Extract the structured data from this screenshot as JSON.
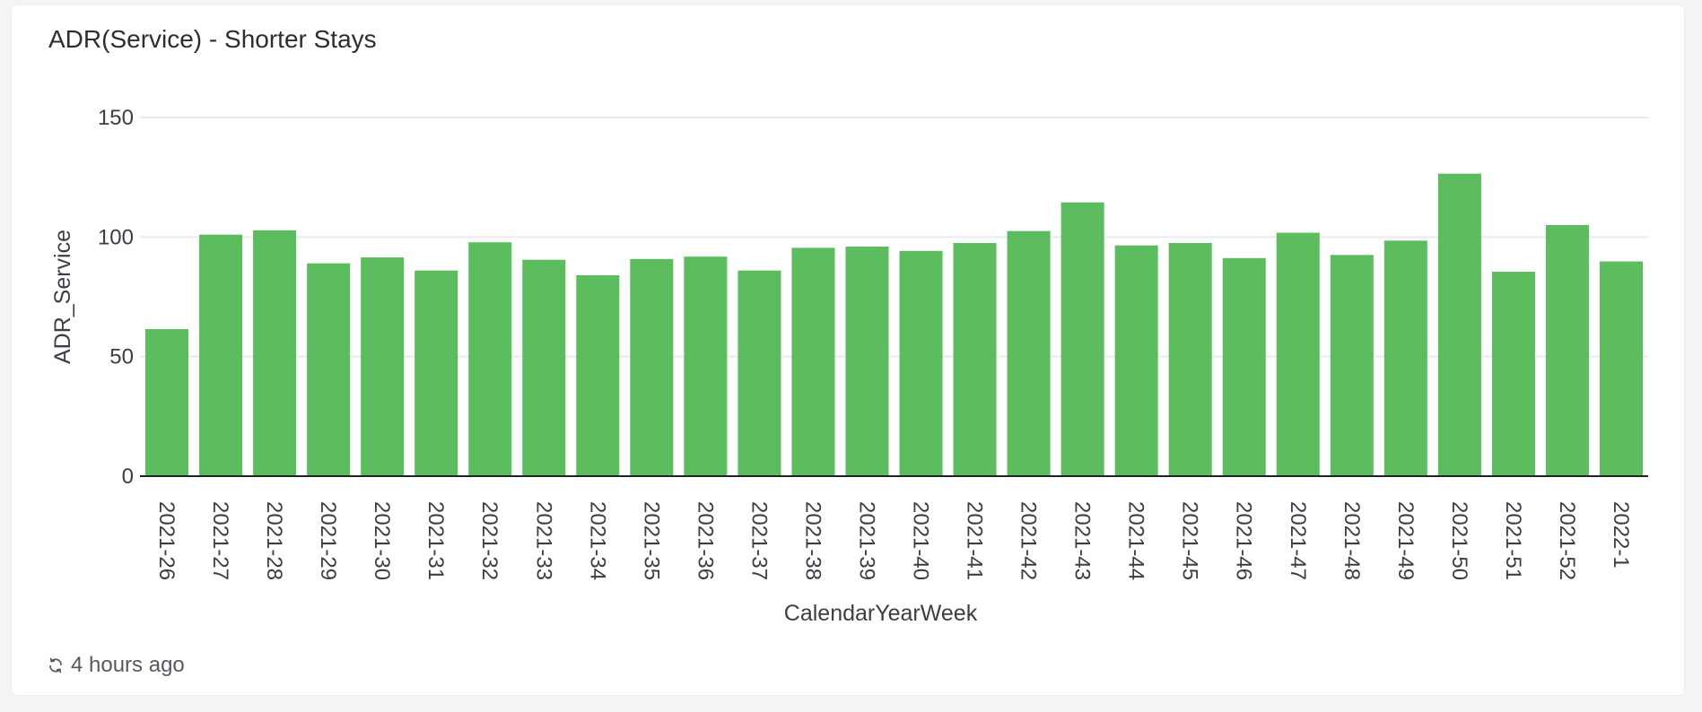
{
  "card": {
    "title": "ADR(Service) - Shorter Stays",
    "footer_text": "4 hours ago",
    "footer_icon": "refresh-icon"
  },
  "colors": {
    "bar": "#5cbd5e",
    "grid": "#e9ebee",
    "axis": "#1f2328"
  },
  "chart_data": {
    "type": "bar",
    "title": "ADR(Service) - Shorter Stays",
    "xlabel": "CalendarYearWeek",
    "ylabel": "ADR_Service",
    "ylim": [
      0,
      150
    ],
    "yticks": [
      0,
      50,
      100,
      150
    ],
    "grid": true,
    "categories": [
      "2021-26",
      "2021-27",
      "2021-28",
      "2021-29",
      "2021-30",
      "2021-31",
      "2021-32",
      "2021-33",
      "2021-34",
      "2021-35",
      "2021-36",
      "2021-37",
      "2021-38",
      "2021-39",
      "2021-40",
      "2021-41",
      "2021-42",
      "2021-43",
      "2021-44",
      "2021-45",
      "2021-46",
      "2021-47",
      "2021-48",
      "2021-49",
      "2021-50",
      "2021-51",
      "2021-52",
      "2022-1"
    ],
    "values": [
      61.5,
      101,
      102.8,
      89,
      91.5,
      86,
      97.8,
      90.5,
      84,
      90.8,
      91.8,
      86,
      95.5,
      96,
      94.2,
      97.5,
      102.5,
      114.5,
      96.5,
      97.5,
      91.2,
      101.8,
      92.5,
      98.5,
      126.5,
      85.5,
      105,
      89.8
    ]
  }
}
